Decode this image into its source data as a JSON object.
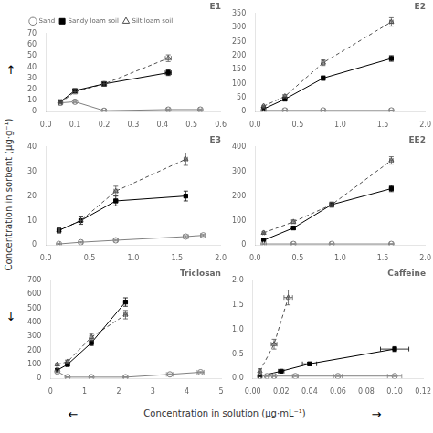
{
  "chart_data": {
    "type": "line",
    "xlabel": "Concentration in solution (μg·mL⁻¹)",
    "ylabel": "Concentration in sorbent (μg·g⁻¹)",
    "annotations": [
      "↑",
      "↓",
      "←",
      "→"
    ],
    "grid": false,
    "series": [
      {
        "name": "Sand",
        "color": "#808080",
        "marker": "open_circle",
        "line_style": "solid"
      },
      {
        "name": "Sandy loam soil",
        "color": "#000000",
        "marker": "square",
        "line_style": "solid"
      },
      {
        "name": "Silt loam soil",
        "color": "#505050",
        "marker": "open_triangle",
        "line_style": "dashed"
      }
    ],
    "panels": [
      {
        "title": "E1",
        "legend": "upper left",
        "xlim": [
          0,
          0.6
        ],
        "ylim": [
          0,
          70
        ],
        "xticks": [
          {
            "value": 0.0,
            "label": "0.0"
          },
          0.1,
          0.2,
          0.3,
          0.4,
          0.5,
          0.6
        ],
        "yticks": [
          0,
          10,
          20,
          30,
          40,
          50,
          60,
          70
        ],
        "series": [
          {
            "x": [
              0.05,
              0.1,
              0.2,
              0.42,
              0.53
            ],
            "values": [
              8,
              9,
              1,
              2,
              2
            ],
            "yerr": [
              1,
              1,
              0.5,
              0.5,
              0.5
            ],
            "xerr": [
              0.005,
              0.005,
              0.005,
              0.005,
              0.005
            ]
          },
          {
            "x": [
              0.05,
              0.1,
              0.2,
              0.42
            ],
            "values": [
              9,
              19,
              25,
              35
            ],
            "yerr": [
              1,
              1.5,
              2,
              2.5
            ],
            "xerr": [
              0.005,
              0.008,
              0.008,
              0.01
            ]
          },
          {
            "x": [
              0.05,
              0.1,
              0.2,
              0.42
            ],
            "values": [
              8,
              18,
              25,
              48
            ],
            "yerr": [
              1,
              2,
              2,
              3
            ],
            "xerr": [
              0.005,
              0.008,
              0.008,
              0.01
            ]
          }
        ]
      },
      {
        "title": "E2",
        "xlim": [
          0,
          2.0
        ],
        "ylim": [
          0,
          350
        ],
        "xticks": [
          {
            "value": 0.0,
            "label": "0.0"
          },
          0.5,
          {
            "value": 1.0,
            "label": "1.0"
          },
          1.5,
          {
            "value": 2.0,
            "label": "2.0"
          }
        ],
        "yticks": [
          0,
          50,
          100,
          150,
          200,
          250,
          300,
          350
        ],
        "series": [
          {
            "x": [
              0.1,
              0.35,
              0.8,
              1.6
            ],
            "values": [
              5,
              5,
              5,
              5
            ],
            "yerr": [
              1,
              1,
              1,
              1
            ],
            "xerr": [
              0.01,
              0.02,
              0.02,
              0.02
            ]
          },
          {
            "x": [
              0.1,
              0.35,
              0.8,
              1.6
            ],
            "values": [
              10,
              45,
              120,
              190
            ],
            "yerr": [
              2,
              4,
              8,
              10
            ],
            "xerr": [
              0.01,
              0.02,
              0.02,
              0.02
            ]
          },
          {
            "x": [
              0.1,
              0.35,
              0.8,
              1.6
            ],
            "values": [
              20,
              55,
              175,
              320
            ],
            "yerr": [
              3,
              5,
              10,
              15
            ],
            "xerr": [
              0.01,
              0.02,
              0.02,
              0.02
            ]
          }
        ]
      },
      {
        "title": "E3",
        "xlim": [
          0,
          2.0
        ],
        "ylim": [
          0,
          40
        ],
        "xticks": [
          {
            "value": 0.0,
            "label": "0.0"
          },
          0.5,
          {
            "value": 1.0,
            "label": "1.0"
          },
          1.5,
          {
            "value": 2.0,
            "label": "2.0"
          }
        ],
        "yticks": [
          0,
          10,
          20,
          30,
          40
        ],
        "series": [
          {
            "x": [
              0.15,
              0.4,
              0.8,
              1.6,
              1.8
            ],
            "values": [
              0.5,
              1.2,
              2.0,
              3.5,
              4.0
            ],
            "yerr": [
              0.2,
              0.3,
              0.3,
              0.4,
              0.4
            ],
            "xerr": [
              0.01,
              0.02,
              0.02,
              0.03,
              0.03
            ]
          },
          {
            "x": [
              0.15,
              0.4,
              0.8,
              1.6
            ],
            "values": [
              6,
              10,
              18,
              20
            ],
            "yerr": [
              1,
              1.5,
              2,
              2
            ],
            "xerr": [
              0.01,
              0.02,
              0.02,
              0.02
            ]
          },
          {
            "x": [
              0.15,
              0.4,
              0.8,
              1.6
            ],
            "values": [
              6,
              10,
              22,
              35
            ],
            "yerr": [
              1,
              1.5,
              2,
              2.5
            ],
            "xerr": [
              0.01,
              0.02,
              0.02,
              0.02
            ]
          }
        ]
      },
      {
        "title": "EE2",
        "xlim": [
          0,
          2.0
        ],
        "ylim": [
          0,
          400
        ],
        "xticks": [
          {
            "value": 0.0,
            "label": "0.0"
          },
          0.5,
          {
            "value": 1.0,
            "label": "1.0"
          },
          1.5,
          {
            "value": 2.0,
            "label": "2.0"
          }
        ],
        "yticks": [
          0,
          100,
          200,
          300,
          400
        ],
        "series": [
          {
            "x": [
              0.1,
              0.45,
              0.9,
              1.6
            ],
            "values": [
              5,
              5,
              5,
              5
            ],
            "yerr": [
              1,
              1,
              1,
              1
            ],
            "xerr": [
              0.01,
              0.02,
              0.02,
              0.02
            ]
          },
          {
            "x": [
              0.1,
              0.45,
              0.9,
              1.6
            ],
            "values": [
              20,
              70,
              165,
              230
            ],
            "yerr": [
              3,
              6,
              10,
              12
            ],
            "xerr": [
              0.01,
              0.02,
              0.02,
              0.02
            ]
          },
          {
            "x": [
              0.1,
              0.45,
              0.9,
              1.6
            ],
            "values": [
              50,
              95,
              165,
              345
            ],
            "yerr": [
              4,
              7,
              10,
              15
            ],
            "xerr": [
              0.01,
              0.02,
              0.02,
              0.02
            ]
          }
        ]
      },
      {
        "title": "Triclosan",
        "xlim": [
          0,
          5
        ],
        "ylim": [
          0,
          700
        ],
        "xticks": [
          0,
          1,
          2,
          3,
          4,
          5
        ],
        "yticks": [
          0,
          100,
          200,
          300,
          400,
          500,
          600,
          700
        ],
        "series": [
          {
            "x": [
              0.2,
              0.5,
              1.2,
              2.2,
              3.5,
              4.4
            ],
            "values": [
              50,
              10,
              10,
              10,
              30,
              45
            ],
            "yerr": [
              5,
              2,
              2,
              2,
              4,
              5
            ],
            "xerr": [
              0.02,
              0.05,
              0.05,
              0.05,
              0.1,
              0.1
            ]
          },
          {
            "x": [
              0.2,
              0.5,
              1.2,
              2.2
            ],
            "values": [
              60,
              100,
              255,
              545
            ],
            "yerr": [
              5,
              8,
              20,
              30
            ],
            "xerr": [
              0.02,
              0.05,
              0.05,
              0.05
            ]
          },
          {
            "x": [
              0.2,
              0.5,
              1.2,
              2.2
            ],
            "values": [
              100,
              120,
              295,
              455
            ],
            "yerr": [
              8,
              10,
              25,
              30
            ],
            "xerr": [
              0.02,
              0.05,
              0.05,
              0.05
            ]
          }
        ]
      },
      {
        "title": "Caffeine",
        "xlim": [
          0,
          0.12
        ],
        "ylim": [
          0,
          2
        ],
        "xticks": [
          {
            "value": 0.0,
            "label": "0.00"
          },
          {
            "value": 0.02,
            "label": "0.02"
          },
          {
            "value": 0.04,
            "label": "0.04"
          },
          {
            "value": 0.06,
            "label": "0.06"
          },
          {
            "value": 0.08,
            "label": "0.08"
          },
          {
            "value": 0.1,
            "label": "0.10"
          },
          {
            "value": 0.12,
            "label": "0.12"
          }
        ],
        "yticks": [
          {
            "value": 0,
            "label": "0.0"
          },
          0.5,
          {
            "value": 1.0,
            "label": "1.0"
          },
          1.5,
          {
            "value": 2.0,
            "label": "2.0"
          }
        ],
        "series": [
          {
            "x": [
              0.005,
              0.01,
              0.015,
              0.03,
              0.06,
              0.1
            ],
            "values": [
              0.05,
              0.05,
              0.05,
              0.05,
              0.05,
              0.05
            ],
            "yerr": [
              0.01,
              0.01,
              0.01,
              0.01,
              0.01,
              0.01
            ],
            "xerr": [
              0.001,
              0.001,
              0.001,
              0.002,
              0.003,
              0.005
            ]
          },
          {
            "x": [
              0.005,
              0.02,
              0.04,
              0.1
            ],
            "values": [
              0.05,
              0.15,
              0.3,
              0.6
            ],
            "yerr": [
              0.01,
              0.02,
              0.03,
              0.05
            ],
            "xerr": [
              0.001,
              0.002,
              0.005,
              0.01
            ]
          },
          {
            "x": [
              0.005,
              0.015,
              0.025
            ],
            "values": [
              0.15,
              0.7,
              1.65
            ],
            "yerr": [
              0.05,
              0.1,
              0.15
            ],
            "xerr": [
              0.001,
              0.002,
              0.003
            ]
          }
        ]
      }
    ]
  }
}
